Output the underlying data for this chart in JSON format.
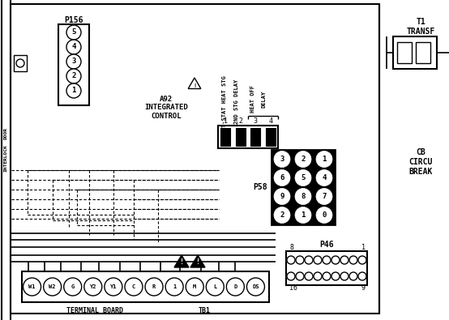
{
  "bg_color": "#ffffff",
  "line_color": "#000000",
  "p156_label": "P156",
  "p156_pins": [
    "5",
    "4",
    "3",
    "2",
    "1"
  ],
  "a92_label": "A92\nINTEGRATED\nCONTROL",
  "connector_4pin_nums": [
    "1",
    "2",
    "3",
    "4"
  ],
  "p58_label": "P58",
  "p58_pins_rows": [
    [
      "3",
      "2",
      "1"
    ],
    [
      "6",
      "5",
      "4"
    ],
    [
      "9",
      "8",
      "7"
    ],
    [
      "2",
      "1",
      "0"
    ]
  ],
  "p46_label": "P46",
  "terminal_labels": [
    "W1",
    "W2",
    "G",
    "Y2",
    "Y1",
    "C",
    "R",
    "1",
    "M",
    "L",
    "D",
    "DS"
  ],
  "terminal_board_label": "TERMINAL BOARD",
  "tb1_label": "TB1",
  "t1_label": "T1\nTRANSF",
  "cb_label": "CB\nCIRCU\nBREAK",
  "tstat_label": "T-STAT HEAT STG",
  "snd_stg_label": "2ND STG DELAY",
  "heat_off_label": "HEAT OFF",
  "delay_label": "DELAY"
}
